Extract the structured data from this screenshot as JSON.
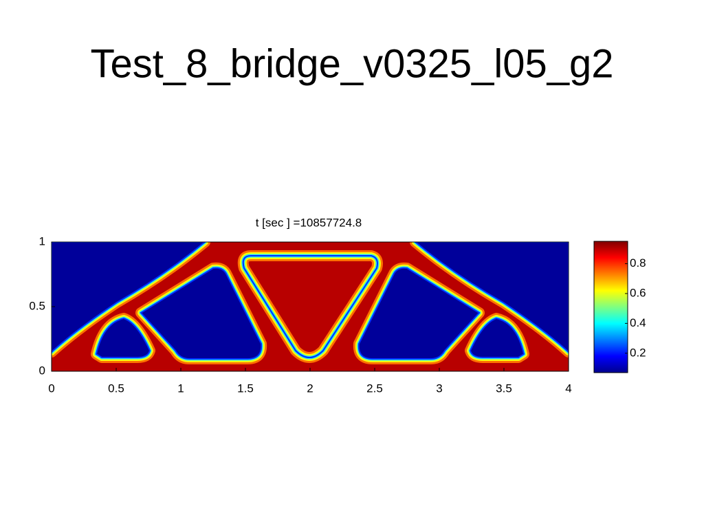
{
  "slide_title": "Test_8_bridge_v0325_l05_g2",
  "chart_data": {
    "type": "heatmap",
    "title": "t [sec ] =10857724.8",
    "xlim": [
      0,
      4
    ],
    "xticks": [
      0,
      0.5,
      1,
      1.5,
      2,
      2.5,
      3,
      3.5,
      4
    ],
    "ylim": [
      0,
      1
    ],
    "yticks": [
      0,
      0.5,
      1
    ],
    "colorbar": {
      "lim": [
        0.07,
        0.95
      ],
      "ticks": [
        0.2,
        0.4,
        0.6,
        0.8
      ]
    }
  }
}
